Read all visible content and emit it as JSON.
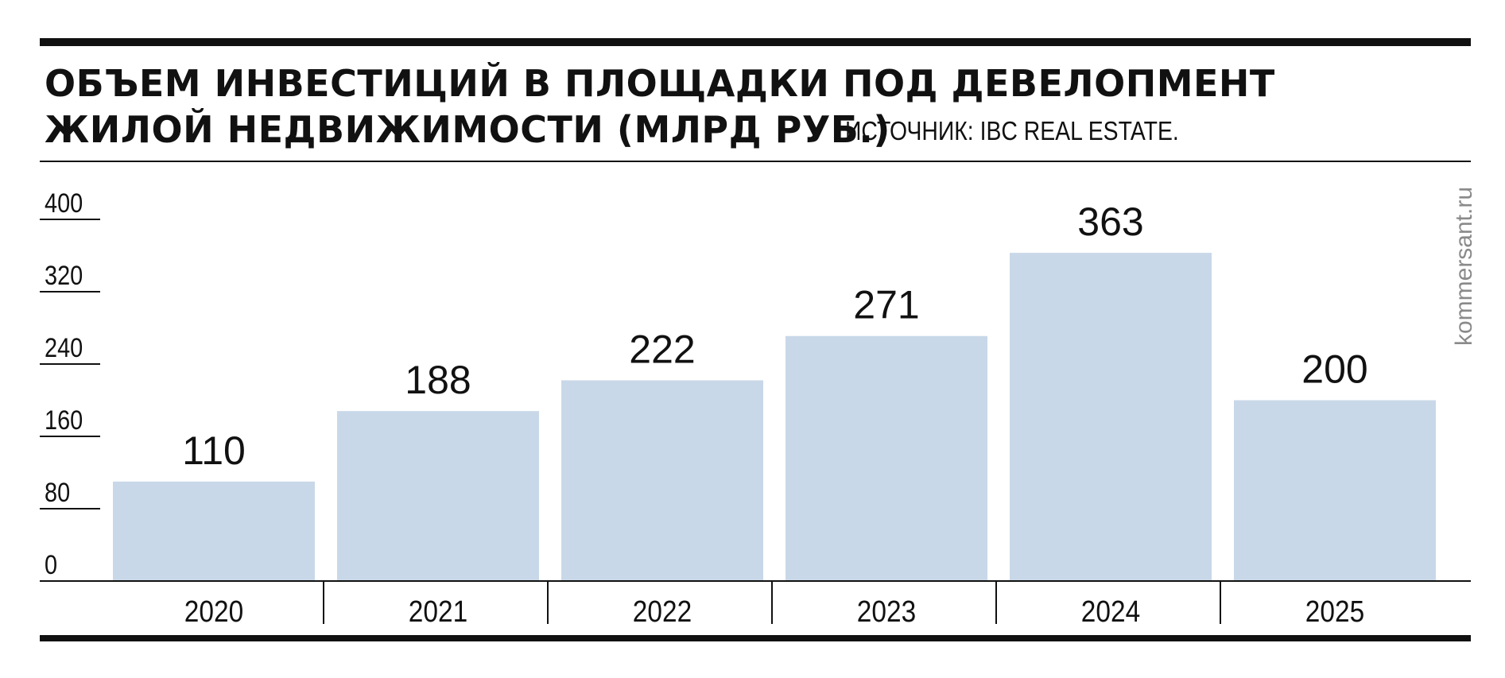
{
  "title": {
    "line1": "ОБЪЕМ ИНВЕСТИЦИЙ В ПЛОЩАДКИ ПОД ДЕВЕЛОПМЕНТ",
    "line2": "ЖИЛОЙ НЕДВИЖИМОСТИ (МЛРД РУБ.)"
  },
  "source": "ИСТОЧНИК: IBC REAL ESTATE.",
  "watermark": "kommersant.ru",
  "colors": {
    "bar": "#c9d8e8",
    "ink": "#111111",
    "watermark": "#8a8a8a"
  },
  "chart_data": {
    "type": "bar",
    "title": "ОБЪЕМ ИНВЕСТИЦИЙ В ПЛОЩАДКИ ПОД ДЕВЕЛОПМЕНТ ЖИЛОЙ НЕДВИЖИМОСТИ (МЛРД РУБ.)",
    "categories": [
      "2020",
      "2021",
      "2022",
      "2023",
      "2024",
      "2025"
    ],
    "values": [
      110,
      188,
      222,
      271,
      363,
      200
    ],
    "data_labels": [
      "110",
      "188",
      "222",
      "271",
      "363",
      "200"
    ],
    "yticks": [
      "0",
      "80",
      "160",
      "240",
      "320",
      "400"
    ],
    "ylim": [
      0,
      400
    ],
    "xlabel": "",
    "ylabel": "",
    "grid": false,
    "legend": "none"
  }
}
